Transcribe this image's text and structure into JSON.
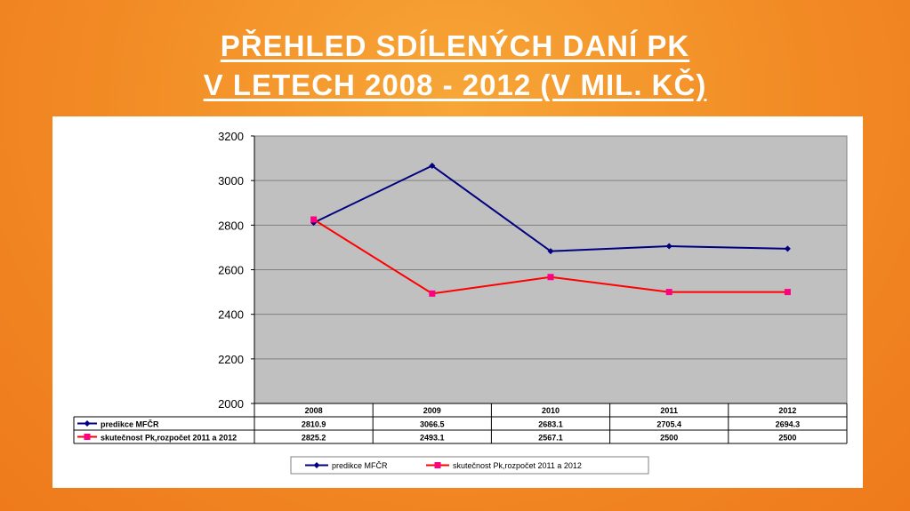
{
  "title": {
    "line1": "PŘEHLED SDÍLENÝCH DANÍ PK",
    "line2": "V LETECH 2008 - 2012 (V MIL. KČ)"
  },
  "chart_data": {
    "type": "line",
    "categories": [
      "2008",
      "2009",
      "2010",
      "2011",
      "2012"
    ],
    "ylim": [
      2000,
      3200
    ],
    "yticks": [
      2000,
      2200,
      2400,
      2600,
      2800,
      3000,
      3200
    ],
    "grid": true,
    "legend": "bottom",
    "plot_background": "#c0c0c0",
    "series": [
      {
        "name": "predikce MFČR",
        "values": [
          2810.9,
          3066.5,
          2683.1,
          2705.4,
          2694.3
        ],
        "labels": [
          "2810.9",
          "3066.5",
          "2683.1",
          "2705.4",
          "2694.3"
        ],
        "color": "#000080",
        "marker": "diamond"
      },
      {
        "name": "skutečnost Pk,rozpočet 2011 a 2012",
        "values": [
          2825.2,
          2493.1,
          2567.1,
          2500,
          2500
        ],
        "labels": [
          "2825.2",
          "2493.1",
          "2567.1",
          "2500",
          "2500"
        ],
        "color": "#ff0000",
        "marker_color": "#ff0080",
        "marker": "square"
      }
    ]
  }
}
